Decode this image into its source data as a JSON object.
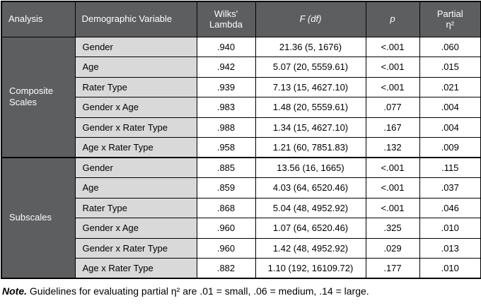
{
  "colors": {
    "header_bg": "#5d5e60",
    "variable_column_bg": "#d9d9d9",
    "data_cell_bg": "#ffffff",
    "border": "#000000",
    "header_text": "#ffffff",
    "body_text": "#000000"
  },
  "table": {
    "headers": {
      "analysis": "Analysis",
      "variable": "Demographic Variable",
      "wilks_line1": "Wilks'",
      "wilks_line2": "Lambda",
      "f": "F (df)",
      "p": "p",
      "partial_line1": "Partial",
      "partial_line2": "η²"
    },
    "sections": [
      {
        "label": "Composite Scales",
        "rows": [
          {
            "variable": "Gender",
            "wilks": ".940",
            "f": "21.36 (5, 1676)",
            "p": "<.001",
            "partial": ".060"
          },
          {
            "variable": "Age",
            "wilks": ".942",
            "f": "5.07 (20, 5559.61)",
            "p": "<.001",
            "partial": ".015"
          },
          {
            "variable": "Rater Type",
            "wilks": ".939",
            "f": "7.13 (15, 4627.10)",
            "p": "<.001",
            "partial": ".021"
          },
          {
            "variable": "Gender x Age",
            "wilks": ".983",
            "f": "1.48 (20, 5559.61)",
            "p": ".077",
            "partial": ".004"
          },
          {
            "variable": "Gender x Rater Type",
            "wilks": ".988",
            "f": "1.34 (15, 4627.10)",
            "p": ".167",
            "partial": ".004"
          },
          {
            "variable": "Age x Rater Type",
            "wilks": ".958",
            "f": "1.21 (60, 7851.83)",
            "p": ".132",
            "partial": ".009"
          }
        ]
      },
      {
        "label": "Subscales",
        "rows": [
          {
            "variable": "Gender",
            "wilks": ".885",
            "f": "13.56 (16, 1665)",
            "p": "<.001",
            "partial": ".115"
          },
          {
            "variable": "Age",
            "wilks": ".859",
            "f": "4.03 (64, 6520.46)",
            "p": "<.001",
            "partial": ".037"
          },
          {
            "variable": "Rater Type",
            "wilks": ".868",
            "f": "5.04 (48, 4952.92)",
            "p": "<.001",
            "partial": ".046"
          },
          {
            "variable": "Gender x Age",
            "wilks": ".960",
            "f": "1.07 (64, 6520.46)",
            "p": ".325",
            "partial": ".010"
          },
          {
            "variable": "Gender x Rater Type",
            "wilks": ".960",
            "f": "1.42 (48, 4952.92)",
            "p": ".029",
            "partial": ".013"
          },
          {
            "variable": "Age x Rater Type",
            "wilks": ".882",
            "f": "1.10 (192, 16109.72)",
            "p": ".177",
            "partial": ".010"
          }
        ]
      }
    ]
  },
  "note": {
    "label": "Note.",
    "text": " Guidelines for evaluating partial η² are .01 = small, .06 = medium, .14 = large."
  }
}
